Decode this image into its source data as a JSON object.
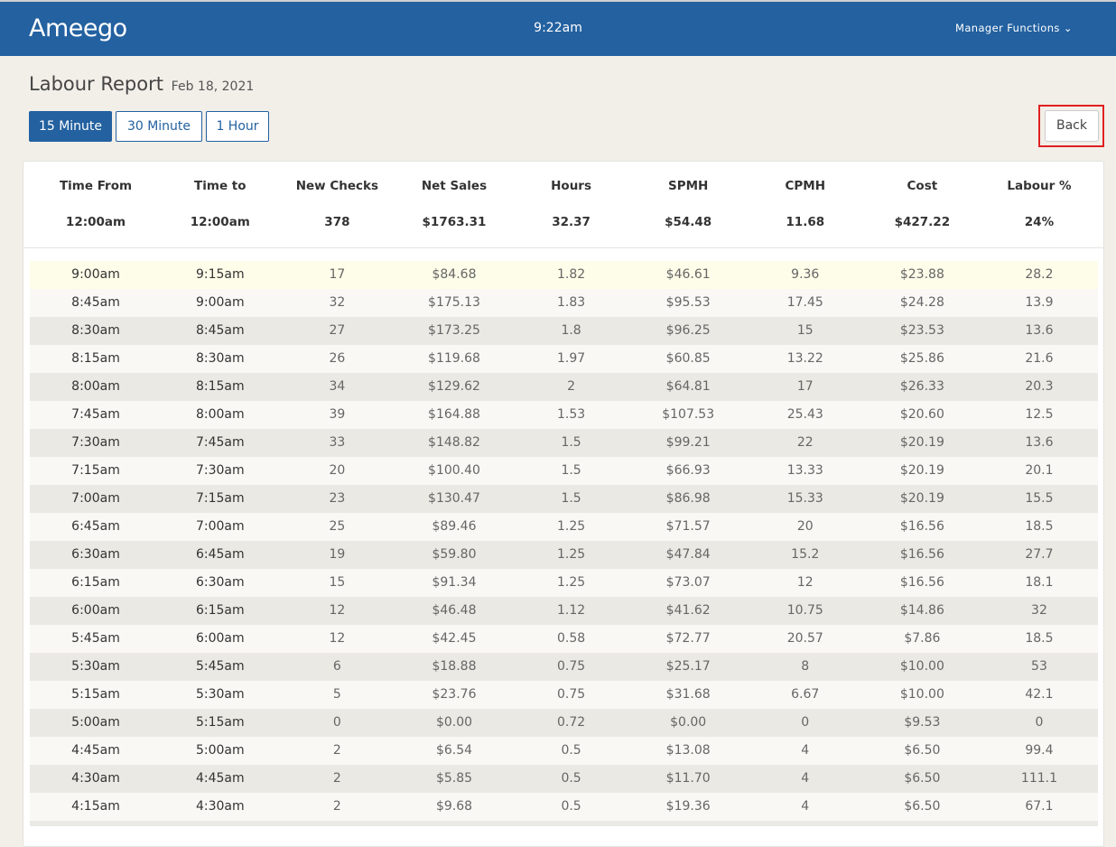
{
  "header": {
    "logo": "Ameego",
    "time": "9:22am",
    "menu": "Manager Functions"
  },
  "page": {
    "title": "Labour Report",
    "date": "Feb 18, 2021"
  },
  "buttons": {
    "intervals": [
      "15 Minute",
      "30 Minute",
      "1 Hour"
    ],
    "back": "Back"
  },
  "summary": {
    "headers": [
      "Time From",
      "Time to",
      "New Checks",
      "Net Sales",
      "Hours",
      "SPMH",
      "CPMH",
      "Cost",
      "Labour %"
    ],
    "values": [
      "12:00am",
      "12:00am",
      "378",
      "$1763.31",
      "32.37",
      "$54.48",
      "11.68",
      "$427.22",
      "24%"
    ]
  },
  "table": {
    "rows": [
      [
        "9:00am",
        "9:15am",
        "17",
        "$84.68",
        "1.82",
        "$46.61",
        "9.36",
        "$23.88",
        "28.2"
      ],
      [
        "8:45am",
        "9:00am",
        "32",
        "$175.13",
        "1.83",
        "$95.53",
        "17.45",
        "$24.28",
        "13.9"
      ],
      [
        "8:30am",
        "8:45am",
        "27",
        "$173.25",
        "1.8",
        "$96.25",
        "15",
        "$23.53",
        "13.6"
      ],
      [
        "8:15am",
        "8:30am",
        "26",
        "$119.68",
        "1.97",
        "$60.85",
        "13.22",
        "$25.86",
        "21.6"
      ],
      [
        "8:00am",
        "8:15am",
        "34",
        "$129.62",
        "2",
        "$64.81",
        "17",
        "$26.33",
        "20.3"
      ],
      [
        "7:45am",
        "8:00am",
        "39",
        "$164.88",
        "1.53",
        "$107.53",
        "25.43",
        "$20.60",
        "12.5"
      ],
      [
        "7:30am",
        "7:45am",
        "33",
        "$148.82",
        "1.5",
        "$99.21",
        "22",
        "$20.19",
        "13.6"
      ],
      [
        "7:15am",
        "7:30am",
        "20",
        "$100.40",
        "1.5",
        "$66.93",
        "13.33",
        "$20.19",
        "20.1"
      ],
      [
        "7:00am",
        "7:15am",
        "23",
        "$130.47",
        "1.5",
        "$86.98",
        "15.33",
        "$20.19",
        "15.5"
      ],
      [
        "6:45am",
        "7:00am",
        "25",
        "$89.46",
        "1.25",
        "$71.57",
        "20",
        "$16.56",
        "18.5"
      ],
      [
        "6:30am",
        "6:45am",
        "19",
        "$59.80",
        "1.25",
        "$47.84",
        "15.2",
        "$16.56",
        "27.7"
      ],
      [
        "6:15am",
        "6:30am",
        "15",
        "$91.34",
        "1.25",
        "$73.07",
        "12",
        "$16.56",
        "18.1"
      ],
      [
        "6:00am",
        "6:15am",
        "12",
        "$46.48",
        "1.12",
        "$41.62",
        "10.75",
        "$14.86",
        "32"
      ],
      [
        "5:45am",
        "6:00am",
        "12",
        "$42.45",
        "0.58",
        "$72.77",
        "20.57",
        "$7.86",
        "18.5"
      ],
      [
        "5:30am",
        "5:45am",
        "6",
        "$18.88",
        "0.75",
        "$25.17",
        "8",
        "$10.00",
        "53"
      ],
      [
        "5:15am",
        "5:30am",
        "5",
        "$23.76",
        "0.75",
        "$31.68",
        "6.67",
        "$10.00",
        "42.1"
      ],
      [
        "5:00am",
        "5:15am",
        "0",
        "$0.00",
        "0.72",
        "$0.00",
        "0",
        "$9.53",
        "0"
      ],
      [
        "4:45am",
        "5:00am",
        "2",
        "$6.54",
        "0.5",
        "$13.08",
        "4",
        "$6.50",
        "99.4"
      ],
      [
        "4:30am",
        "4:45am",
        "2",
        "$5.85",
        "0.5",
        "$11.70",
        "4",
        "$6.50",
        "111.1"
      ],
      [
        "4:15am",
        "4:30am",
        "2",
        "$9.68",
        "0.5",
        "$19.36",
        "4",
        "$6.50",
        "67.1"
      ]
    ]
  }
}
